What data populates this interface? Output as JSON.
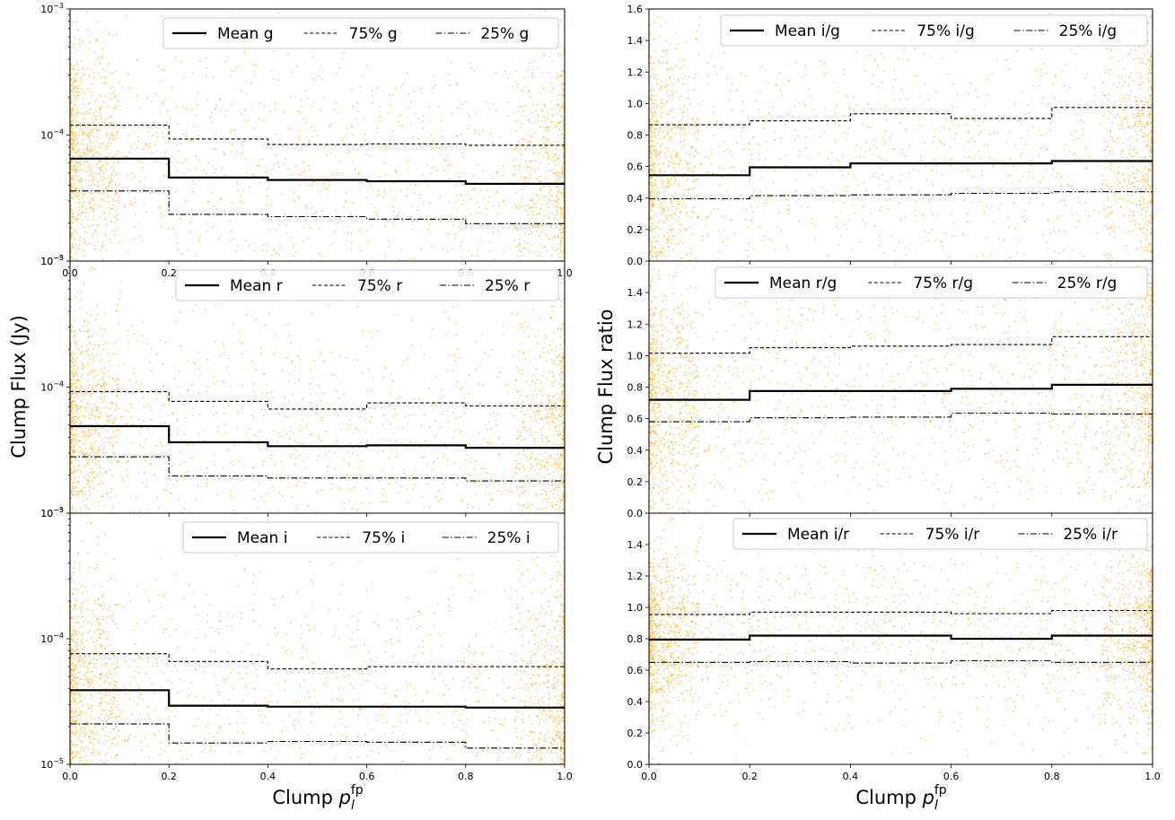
{
  "figure": {
    "left_ylabel": "Clump Flux (Jy)",
    "right_ylabel": "Clump Flux ratio",
    "xlabel_main": "Clump ",
    "xlabel_sym": "p",
    "xlabel_sub": "l",
    "xlabel_sup": "fp"
  },
  "colors": {
    "scatter": "#FFA500",
    "line": "#000000"
  },
  "chart_data": [
    {
      "type": "line",
      "panel": "left-top",
      "xlim": [
        0.0,
        1.0
      ],
      "ylim": [
        1e-05,
        0.001
      ],
      "yscale": "log",
      "x_ticks": [
        "0.0",
        "0.2",
        "0.4",
        "0.6",
        "0.8",
        "1.0"
      ],
      "y_ticks": [
        {
          "base": "10",
          "exp": "−5"
        },
        {
          "base": "10",
          "exp": "−4"
        },
        {
          "base": "10",
          "exp": "−3"
        }
      ],
      "bin_edges": [
        0.0,
        0.2,
        0.4,
        0.6,
        0.8,
        1.0
      ],
      "legend_position": "top-right",
      "series": [
        {
          "name": "Mean g",
          "style": "solid",
          "values": [
            6.5e-05,
            4.6e-05,
            4.4e-05,
            4.3e-05,
            4.1e-05
          ]
        },
        {
          "name": "75% g",
          "style": "dashed",
          "values": [
            0.00012,
            9.3e-05,
            8.4e-05,
            8.5e-05,
            8.3e-05
          ]
        },
        {
          "name": "25% g",
          "style": "dashdot",
          "values": [
            3.6e-05,
            2.35e-05,
            2.25e-05,
            2.15e-05,
            1.98e-05
          ]
        }
      ]
    },
    {
      "type": "line",
      "panel": "left-middle",
      "xlim": [
        0.0,
        1.0
      ],
      "ylim": [
        1e-05,
        0.001
      ],
      "yscale": "log",
      "x_ticks": [],
      "y_ticks": [
        {
          "base": "10",
          "exp": "−5"
        },
        {
          "base": "10",
          "exp": "−4"
        },
        {
          "base": "10",
          "exp": "−3"
        }
      ],
      "bin_edges": [
        0.0,
        0.2,
        0.4,
        0.6,
        0.8,
        1.0
      ],
      "legend_position": "top-right",
      "series": [
        {
          "name": "Mean r",
          "style": "solid",
          "values": [
            4.9e-05,
            3.65e-05,
            3.4e-05,
            3.45e-05,
            3.3e-05
          ]
        },
        {
          "name": "75% r",
          "style": "dashed",
          "values": [
            9.2e-05,
            7.7e-05,
            6.7e-05,
            7.5e-05,
            7.1e-05
          ]
        },
        {
          "name": "25% r",
          "style": "dashdot",
          "values": [
            2.8e-05,
            1.97e-05,
            1.9e-05,
            1.9e-05,
            1.8e-05
          ]
        }
      ]
    },
    {
      "type": "line",
      "panel": "left-bottom",
      "xlim": [
        0.0,
        1.0
      ],
      "ylim": [
        1e-05,
        0.001
      ],
      "yscale": "log",
      "x_ticks": [
        "0.0",
        "0.2",
        "0.4",
        "0.6",
        "0.8",
        "1.0"
      ],
      "y_ticks": [
        {
          "base": "10",
          "exp": "−5"
        },
        {
          "base": "10",
          "exp": "−4"
        },
        {
          "base": "10",
          "exp": "−3"
        }
      ],
      "bin_edges": [
        0.0,
        0.2,
        0.4,
        0.6,
        0.8,
        1.0
      ],
      "legend_position": "top-right",
      "series": [
        {
          "name": "Mean i",
          "style": "solid",
          "values": [
            3.9e-05,
            2.93e-05,
            2.88e-05,
            2.88e-05,
            2.83e-05
          ]
        },
        {
          "name": "75% i",
          "style": "dashed",
          "values": [
            7.6e-05,
            6.6e-05,
            5.75e-05,
            6e-05,
            6e-05
          ]
        },
        {
          "name": "25% i",
          "style": "dashdot",
          "values": [
            2.1e-05,
            1.48e-05,
            1.52e-05,
            1.5e-05,
            1.35e-05
          ]
        }
      ]
    },
    {
      "type": "line",
      "panel": "right-top",
      "xlim": [
        0.0,
        1.0
      ],
      "ylim": [
        0.0,
        1.6
      ],
      "yscale": "linear",
      "x_ticks": [],
      "y_ticks": [
        "0.0",
        "0.2",
        "0.4",
        "0.6",
        "0.8",
        "1.0",
        "1.2",
        "1.4",
        "1.6"
      ],
      "bin_edges": [
        0.0,
        0.2,
        0.4,
        0.6,
        0.8,
        1.0
      ],
      "legend_position": "top-right",
      "series": [
        {
          "name": "Mean i/g",
          "style": "solid",
          "values": [
            0.545,
            0.595,
            0.62,
            0.62,
            0.635
          ]
        },
        {
          "name": "75% i/g",
          "style": "dashed",
          "values": [
            0.865,
            0.89,
            0.935,
            0.905,
            0.975
          ]
        },
        {
          "name": "25% i/g",
          "style": "dashdot",
          "values": [
            0.395,
            0.415,
            0.42,
            0.43,
            0.44
          ]
        }
      ]
    },
    {
      "type": "line",
      "panel": "right-middle",
      "xlim": [
        0.0,
        1.0
      ],
      "ylim": [
        0.0,
        1.6
      ],
      "yscale": "linear",
      "x_ticks": [],
      "y_ticks": [
        "0.0",
        "0.2",
        "0.4",
        "0.6",
        "0.8",
        "1.0",
        "1.2",
        "1.4"
      ],
      "bin_edges": [
        0.0,
        0.2,
        0.4,
        0.6,
        0.8,
        1.0
      ],
      "legend_position": "top-right",
      "series": [
        {
          "name": "Mean r/g",
          "style": "solid",
          "values": [
            0.72,
            0.775,
            0.775,
            0.79,
            0.815
          ]
        },
        {
          "name": "75% r/g",
          "style": "dashed",
          "values": [
            1.015,
            1.05,
            1.06,
            1.07,
            1.12
          ]
        },
        {
          "name": "25% r/g",
          "style": "dashdot",
          "values": [
            0.58,
            0.605,
            0.61,
            0.635,
            0.63
          ]
        }
      ]
    },
    {
      "type": "line",
      "panel": "right-bottom",
      "xlim": [
        0.0,
        1.0
      ],
      "ylim": [
        0.0,
        1.6
      ],
      "yscale": "linear",
      "x_ticks": [
        "0.0",
        "0.2",
        "0.4",
        "0.6",
        "0.8",
        "1.0"
      ],
      "y_ticks": [
        "0.0",
        "0.2",
        "0.4",
        "0.6",
        "0.8",
        "1.0",
        "1.2",
        "1.4"
      ],
      "bin_edges": [
        0.0,
        0.2,
        0.4,
        0.6,
        0.8,
        1.0
      ],
      "legend_position": "top-right",
      "series": [
        {
          "name": "Mean i/r",
          "style": "solid",
          "values": [
            0.795,
            0.82,
            0.82,
            0.8,
            0.82
          ]
        },
        {
          "name": "75% i/r",
          "style": "dashed",
          "values": [
            0.955,
            0.97,
            0.97,
            0.96,
            0.98
          ]
        },
        {
          "name": "25% i/r",
          "style": "dashdot",
          "values": [
            0.65,
            0.655,
            0.645,
            0.66,
            0.65
          ]
        }
      ]
    }
  ]
}
